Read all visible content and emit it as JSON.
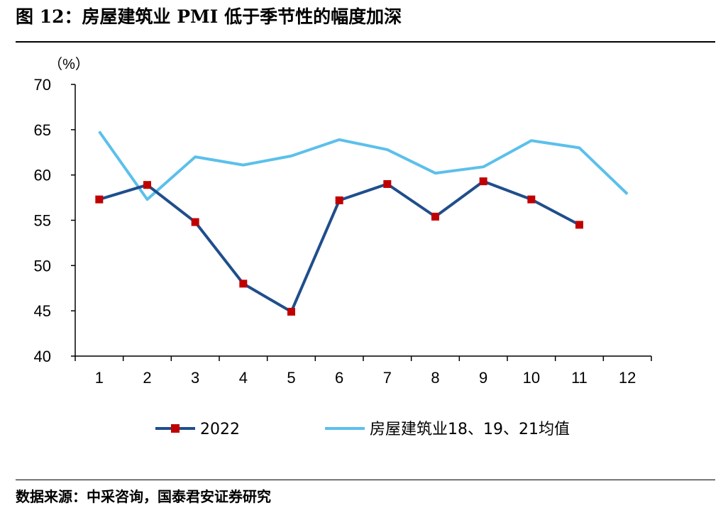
{
  "header": {
    "title": "图 12：房屋建筑业 PMI 低于季节性的幅度加深"
  },
  "footer": {
    "source": "数据来源：中采咨询，国泰君安证券研究"
  },
  "colors": {
    "series_2022": "#1F4E8C",
    "marker_2022": "#C00000",
    "series_avg": "#5BC0EB",
    "axis": "#000000"
  },
  "chart_data": {
    "type": "line",
    "unit_label": "（%）",
    "categories": [
      "1",
      "2",
      "3",
      "4",
      "5",
      "6",
      "7",
      "8",
      "9",
      "10",
      "11",
      "12"
    ],
    "ylim": [
      40,
      70
    ],
    "yticks": [
      40,
      45,
      50,
      55,
      60,
      65,
      70
    ],
    "grid": false,
    "legend_position": "bottom",
    "series": [
      {
        "name": "2022",
        "values": [
          57.3,
          58.9,
          54.8,
          48.0,
          44.9,
          57.2,
          59.0,
          55.4,
          59.3,
          57.3,
          54.5,
          null
        ],
        "marker": "square"
      },
      {
        "name": "房屋建筑业18、19、21均值",
        "values": [
          64.8,
          57.3,
          62.0,
          61.1,
          62.1,
          63.9,
          62.8,
          60.2,
          60.9,
          63.8,
          63.0,
          57.9
        ],
        "marker": "none"
      }
    ]
  }
}
